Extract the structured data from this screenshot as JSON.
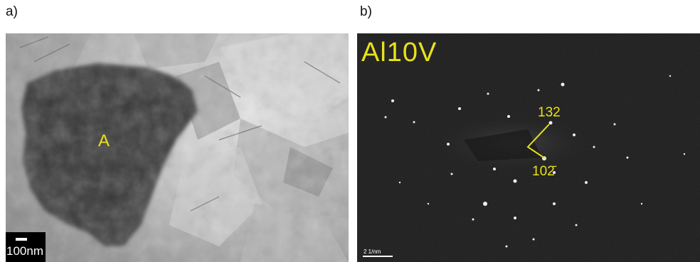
{
  "panels": {
    "a": {
      "label": "a)",
      "grain_label": "A",
      "scale_bar": "100nm"
    },
    "b": {
      "label": "b)",
      "title": "Al10V",
      "indices": [
        "132",
        "102̄"
      ],
      "scale_bar": "2 1/nm"
    }
  },
  "colors": {
    "annotation": "#e8e21a",
    "diffraction_background": "#1c1c1c"
  }
}
